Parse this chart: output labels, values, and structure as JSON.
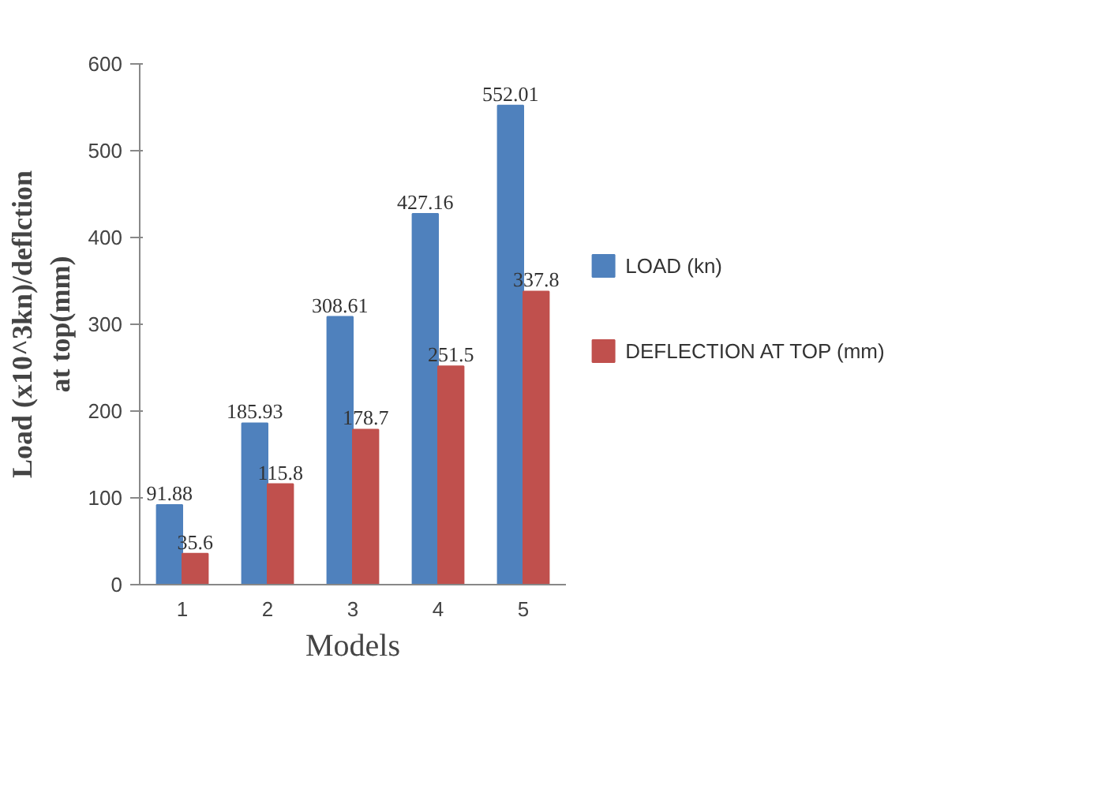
{
  "chart_data": {
    "type": "bar",
    "xlabel": "Models",
    "ylabel": "Load (x10^3kn)/deflction\nat top(mm)",
    "categories": [
      "1",
      "2",
      "3",
      "4",
      "5"
    ],
    "series": [
      {
        "name": "LOAD (kn)",
        "color": "#4f81bd",
        "values": [
          91.88,
          185.93,
          308.61,
          427.16,
          552.01
        ]
      },
      {
        "name": "DEFLECTION AT TOP (mm)",
        "color": "#c0504d",
        "values": [
          35.6,
          115.8,
          178.7,
          251.5,
          337.8
        ]
      }
    ],
    "ylim": [
      0,
      600
    ],
    "yticks": [
      0,
      100,
      200,
      300,
      400,
      500,
      600
    ],
    "grid": false,
    "legend": "right",
    "data_labels": true
  }
}
